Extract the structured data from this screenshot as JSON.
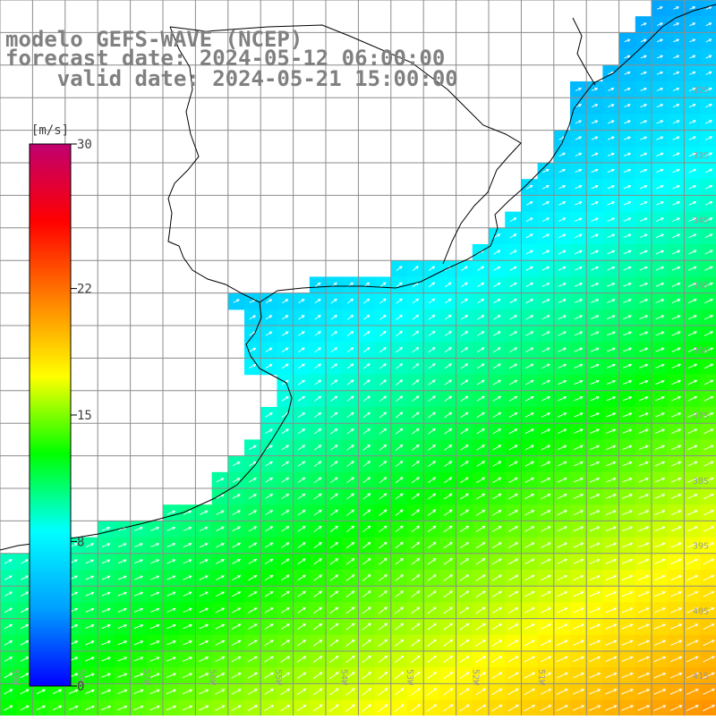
{
  "title": {
    "line1": "modelo GEFS-WAVE (NCEP)",
    "line2": "forecast date: 2024-05-12 06:00:00",
    "line3": "    valid date: 2024-05-21 15:00:00"
  },
  "colorbar": {
    "unit": "[m/s]",
    "ticks": [
      "30",
      "22",
      "15",
      "8",
      "0"
    ],
    "tick_values": [
      30,
      22,
      15,
      8,
      0
    ],
    "min": 0,
    "max": 30,
    "colors": [
      "#0000ff",
      "#00a0ff",
      "#00ffff",
      "#00ff00",
      "#ffff00",
      "#ff8000",
      "#ff0000",
      "#c00070"
    ]
  },
  "grid": {
    "lat_labels": [
      "32S",
      "33S",
      "34S",
      "35S",
      "36S",
      "37S",
      "38S",
      "39S",
      "40S",
      "41S"
    ],
    "lon_labels": [
      "59W",
      "58W",
      "57W",
      "56W",
      "55W",
      "54W",
      "53W",
      "52W",
      "51W"
    ],
    "color": "#8c8c8c"
  },
  "map": {
    "field": "wind speed (m/s) with wind direction arrows",
    "land_color": "#ffffff",
    "coast_color": "#000000",
    "arrow_color": "#ffffff",
    "prevailing_direction_deg": 30
  }
}
